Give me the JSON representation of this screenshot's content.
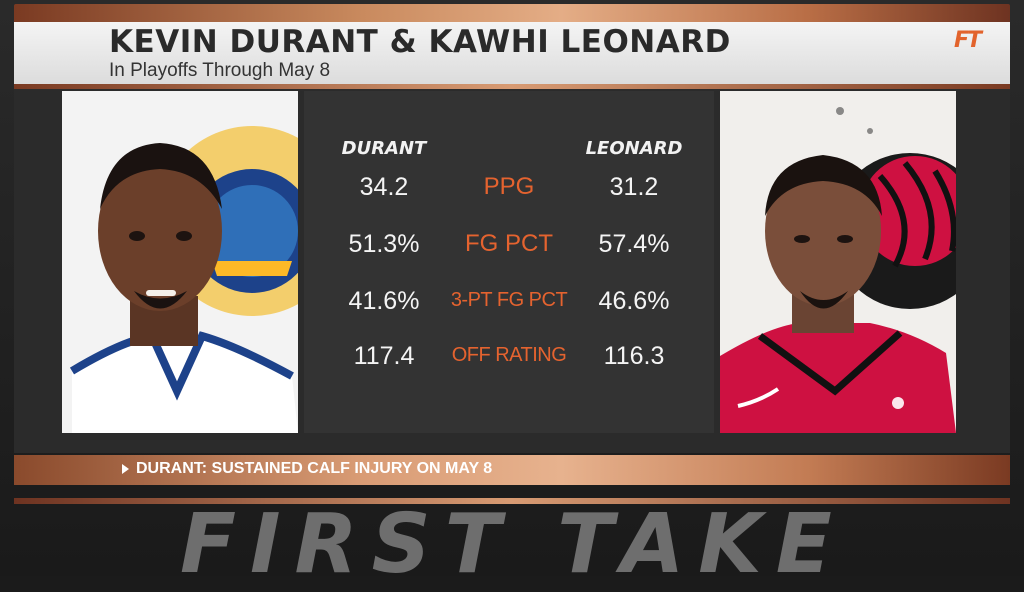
{
  "header": {
    "title": "KEVIN DURANT & KAWHI LEONARD",
    "subtitle": "In Playoffs Through May 8",
    "logo": "FT"
  },
  "players": {
    "left": {
      "name": "DURANT",
      "team_colors": [
        "#1d428a",
        "#fdb927"
      ]
    },
    "right": {
      "name": "LEONARD",
      "team_colors": [
        "#ce1141",
        "#000000"
      ]
    }
  },
  "stats": [
    {
      "label": "PPG",
      "left": "34.2",
      "right": "31.2"
    },
    {
      "label": "FG PCT",
      "left": "51.3%",
      "right": "57.4%"
    },
    {
      "label": "3-PT FG PCT",
      "left": "41.6%",
      "right": "46.6%"
    },
    {
      "label": "OFF RATING",
      "left": "117.4",
      "right": "116.3"
    }
  ],
  "note": "DURANT: SUSTAINED CALF INJURY ON MAY 8",
  "watermark": "FIRST TAKE",
  "colors": {
    "accent": "#e5632f",
    "copper": "#d89b73"
  }
}
